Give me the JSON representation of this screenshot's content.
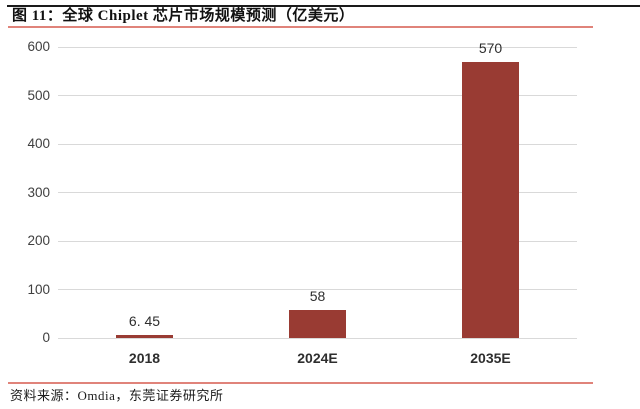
{
  "header": {
    "title": "图 11：全球 Chiplet 芯片市场规模预测（亿美元）"
  },
  "footer": {
    "source": "资料来源：Omdia，东莞证券研究所"
  },
  "colors": {
    "bar": "#993b33",
    "accent_line": "#e0837a",
    "grid": "#d9d9d9",
    "axis_text": "#3f3f3f",
    "top_rule": "#1a1a1a"
  },
  "chart_data": {
    "type": "bar",
    "title": "全球 Chiplet 芯片市场规模预测（亿美元）",
    "categories": [
      "2018",
      "2024E",
      "2035E"
    ],
    "values": [
      6.45,
      58,
      570
    ],
    "value_labels": [
      "6. 45",
      "58",
      "570"
    ],
    "xlabel": "",
    "ylabel": "",
    "ylim": [
      0,
      600
    ],
    "yticks": [
      0,
      100,
      200,
      300,
      400,
      500,
      600
    ],
    "ytick_labels": [
      "0",
      "100",
      "200",
      "300",
      "400",
      "500",
      "600"
    ],
    "grid": true,
    "legend": "none",
    "bar_color": "#993b33"
  }
}
